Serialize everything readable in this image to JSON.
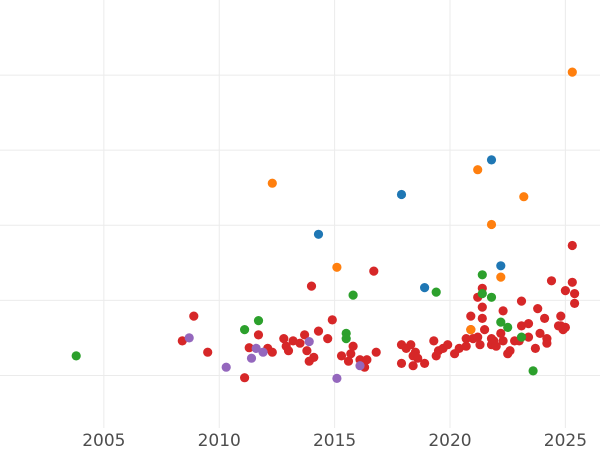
{
  "chart_data": {
    "type": "scatter",
    "title": "",
    "xlabel": "",
    "ylabel": "",
    "xlim": [
      2000.5,
      2026.5
    ],
    "ylim": [
      -0.2,
      5.5
    ],
    "grid": true,
    "x_ticks": [
      2005,
      2010,
      2015,
      2020,
      2025
    ],
    "x_tick_labels": [
      "2005",
      "2010",
      "2015",
      "2020",
      "2025"
    ],
    "y_gridlines": [
      0.5,
      1.5,
      2.5,
      3.5,
      4.5
    ],
    "y_tick_labels_shown": false,
    "legend": "none",
    "colors": {
      "red": "#d62728",
      "orange": "#ff7f0e",
      "blue": "#1f77b4",
      "green": "#2ca02c",
      "purple": "#9467bd"
    },
    "series": [
      {
        "color_key": "red",
        "points": [
          [
            2008.9,
            1.29
          ],
          [
            2008.4,
            0.96
          ],
          [
            2009.5,
            0.81
          ],
          [
            2011.1,
            0.47
          ],
          [
            2011.7,
            1.04
          ],
          [
            2011.3,
            0.87
          ],
          [
            2012.1,
            0.86
          ],
          [
            2012.3,
            0.81
          ],
          [
            2012.8,
            0.99
          ],
          [
            2012.9,
            0.89
          ],
          [
            2013.0,
            0.83
          ],
          [
            2013.2,
            0.96
          ],
          [
            2013.5,
            0.93
          ],
          [
            2013.7,
            1.04
          ],
          [
            2013.8,
            0.83
          ],
          [
            2013.9,
            0.69
          ],
          [
            2014.1,
            0.74
          ],
          [
            2014.3,
            1.09
          ],
          [
            2014.0,
            1.69
          ],
          [
            2014.7,
            0.99
          ],
          [
            2014.9,
            1.24
          ],
          [
            2015.3,
            0.76
          ],
          [
            2015.6,
            0.69
          ],
          [
            2015.7,
            0.79
          ],
          [
            2015.8,
            0.89
          ],
          [
            2016.1,
            0.71
          ],
          [
            2016.3,
            0.61
          ],
          [
            2016.4,
            0.71
          ],
          [
            2016.7,
            1.89
          ],
          [
            2016.8,
            0.81
          ],
          [
            2017.9,
            0.66
          ],
          [
            2017.9,
            0.91
          ],
          [
            2018.1,
            0.86
          ],
          [
            2018.3,
            0.91
          ],
          [
            2018.5,
            0.81
          ],
          [
            2018.4,
            0.76
          ],
          [
            2018.4,
            0.63
          ],
          [
            2018.6,
            0.73
          ],
          [
            2018.9,
            0.66
          ],
          [
            2019.3,
            0.96
          ],
          [
            2019.4,
            0.76
          ],
          [
            2019.5,
            0.83
          ],
          [
            2019.7,
            0.86
          ],
          [
            2019.9,
            0.91
          ],
          [
            2020.2,
            0.79
          ],
          [
            2020.4,
            0.86
          ],
          [
            2020.7,
            0.89
          ],
          [
            2020.9,
            1.29
          ],
          [
            2020.9,
            1.11
          ],
          [
            2021.0,
            0.99
          ],
          [
            2021.2,
            1.01
          ],
          [
            2021.2,
            1.54
          ],
          [
            2021.3,
            0.91
          ],
          [
            2021.4,
            1.66
          ],
          [
            2021.4,
            1.26
          ],
          [
            2021.5,
            1.11
          ],
          [
            2021.4,
            1.41
          ],
          [
            2021.8,
            0.91
          ],
          [
            2021.9,
            0.96
          ],
          [
            2022.0,
            0.89
          ],
          [
            2022.2,
            1.06
          ],
          [
            2022.3,
            1.36
          ],
          [
            2022.5,
            0.79
          ],
          [
            2022.6,
            0.83
          ],
          [
            2022.8,
            0.96
          ],
          [
            2023.0,
            0.96
          ],
          [
            2023.1,
            1.16
          ],
          [
            2023.1,
            1.49
          ],
          [
            2023.4,
            1.19
          ],
          [
            2023.4,
            1.01
          ],
          [
            2023.8,
            1.39
          ],
          [
            2023.9,
            1.06
          ],
          [
            2023.7,
            0.86
          ],
          [
            2024.1,
            1.26
          ],
          [
            2024.2,
            0.99
          ],
          [
            2024.2,
            0.93
          ],
          [
            2024.4,
            1.76
          ],
          [
            2024.7,
            1.16
          ],
          [
            2024.8,
            1.29
          ],
          [
            2024.9,
            1.11
          ],
          [
            2025.0,
            1.14
          ],
          [
            2025.0,
            1.63
          ],
          [
            2025.3,
            1.74
          ],
          [
            2025.3,
            2.23
          ],
          [
            2025.4,
            1.59
          ],
          [
            2025.4,
            1.46
          ],
          [
            2024.8,
            1.16
          ],
          [
            2022.3,
            0.96
          ],
          [
            2021.8,
            0.99
          ],
          [
            2020.7,
            0.99
          ]
        ]
      },
      {
        "color_key": "orange",
        "points": [
          [
            2025.3,
            4.54
          ],
          [
            2021.2,
            3.24
          ],
          [
            2012.3,
            3.06
          ],
          [
            2023.2,
            2.88
          ],
          [
            2021.8,
            2.51
          ],
          [
            2015.1,
            1.94
          ],
          [
            2022.2,
            1.81
          ],
          [
            2020.9,
            1.11
          ]
        ]
      },
      {
        "color_key": "blue",
        "points": [
          [
            2021.8,
            3.37
          ],
          [
            2017.9,
            2.91
          ],
          [
            2014.3,
            2.38
          ],
          [
            2022.2,
            1.96
          ],
          [
            2018.9,
            1.67
          ]
        ]
      },
      {
        "color_key": "green",
        "points": [
          [
            2003.8,
            0.76
          ],
          [
            2011.7,
            1.23
          ],
          [
            2011.1,
            1.11
          ],
          [
            2015.8,
            1.57
          ],
          [
            2015.5,
            1.06
          ],
          [
            2015.5,
            0.99
          ],
          [
            2019.4,
            1.61
          ],
          [
            2021.4,
            1.84
          ],
          [
            2021.4,
            1.59
          ],
          [
            2021.8,
            1.54
          ],
          [
            2022.2,
            1.21
          ],
          [
            2022.5,
            1.14
          ],
          [
            2023.1,
            1.01
          ],
          [
            2023.6,
            0.56
          ]
        ]
      },
      {
        "color_key": "purple",
        "points": [
          [
            2008.7,
            1.0
          ],
          [
            2010.3,
            0.61
          ],
          [
            2011.4,
            0.73
          ],
          [
            2011.6,
            0.86
          ],
          [
            2011.9,
            0.81
          ],
          [
            2013.9,
            0.95
          ],
          [
            2015.1,
            0.46
          ],
          [
            2016.1,
            0.63
          ]
        ]
      }
    ]
  }
}
